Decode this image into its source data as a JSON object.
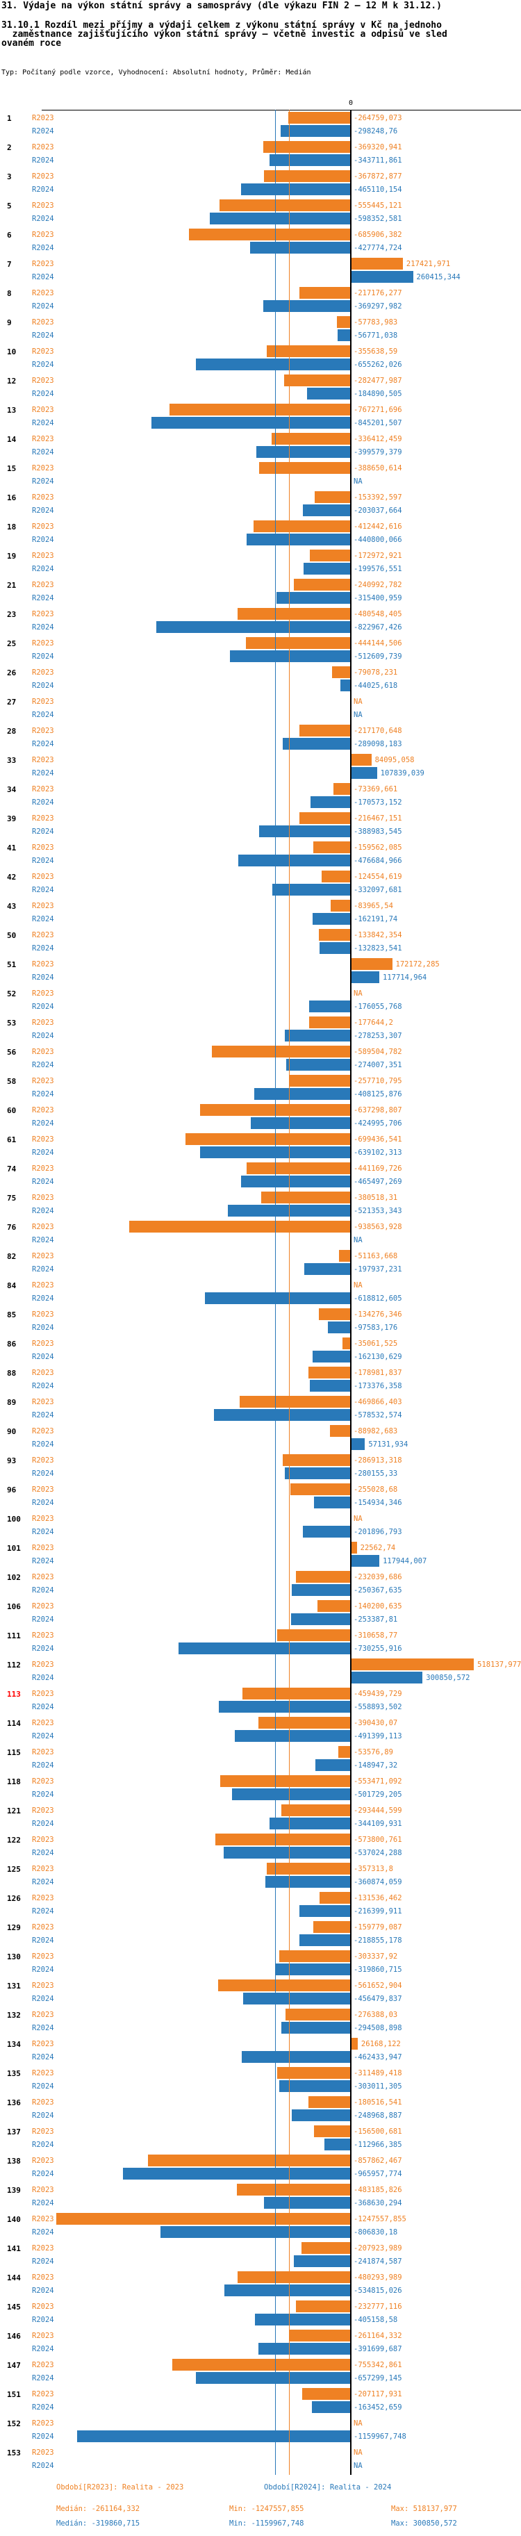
{
  "header": {
    "title": "31. Výdaje na výkon státní správy a samosprávy (dle výkazu FIN 2 – 12 M k 31.12.)",
    "subtitle_line1": "31.10.1 Rozdíl mezi příjmy a výdaji celkem z výkonu státní správy v Kč na jednoho",
    "subtitle_line2": "  zaměstnance zajišťujícího výkon státní správy – včetně investic a odpisů ve sled",
    "subtitle_line3": "ovaném roce",
    "meta": "Typ: Počítaný podle vzorce, Vyhodnocení: Absolutní hodnoty, Průměr: Medián"
  },
  "chart_data": {
    "type": "bar",
    "orientation": "horizontal",
    "zero_tick_label": "0",
    "na_label": "NA",
    "series_labels": [
      "R2023",
      "R2024"
    ],
    "legend": {
      "r2023": "Období[R2023]: Realita - 2023",
      "r2024": "Období[R2024]: Realita - 2024"
    },
    "colors": {
      "r2023": "#ef8123",
      "r2024": "#2979b9",
      "axis": "#000000",
      "highlight_id": "#ff0000"
    },
    "xlim": [
      -1300000,
      600000
    ],
    "median_lines": {
      "r2023": -261164.332,
      "r2024": -319860.715
    },
    "stats": {
      "r2023": {
        "median": "-261164,332",
        "min": "-1247557,855",
        "max": "518137,977"
      },
      "r2024": {
        "median": "-319860,715",
        "min": "-1159967,748",
        "max": "300850,572"
      }
    },
    "rows": [
      {
        "id": "1",
        "r2023": "-264759,073",
        "r2024": "-298248,76"
      },
      {
        "id": "2",
        "r2023": "-369320,941",
        "r2024": "-343711,861"
      },
      {
        "id": "3",
        "r2023": "-367872,877",
        "r2024": "-465110,154"
      },
      {
        "id": "5",
        "r2023": "-555445,121",
        "r2024": "-598352,581"
      },
      {
        "id": "6",
        "r2023": "-685906,382",
        "r2024": "-427774,724"
      },
      {
        "id": "7",
        "r2023": "217421,971",
        "r2024": "260415,344"
      },
      {
        "id": "8",
        "r2023": "-217176,277",
        "r2024": "-369297,982"
      },
      {
        "id": "9",
        "r2023": "-57783,983",
        "r2024": "-56771,038"
      },
      {
        "id": "10",
        "r2023": "-355638,59",
        "r2024": "-655262,026"
      },
      {
        "id": "12",
        "r2023": "-282477,987",
        "r2024": "-184890,505"
      },
      {
        "id": "13",
        "r2023": "-767271,696",
        "r2024": "-845201,507"
      },
      {
        "id": "14",
        "r2023": "-336412,459",
        "r2024": "-399579,379"
      },
      {
        "id": "15",
        "r2023": "-388650,614",
        "r2024": "NA"
      },
      {
        "id": "16",
        "r2023": "-153392,597",
        "r2024": "-203037,664"
      },
      {
        "id": "18",
        "r2023": "-412442,616",
        "r2024": "-440800,066"
      },
      {
        "id": "19",
        "r2023": "-172972,921",
        "r2024": "-199576,551"
      },
      {
        "id": "21",
        "r2023": "-240992,782",
        "r2024": "-315400,959"
      },
      {
        "id": "23",
        "r2023": "-480548,405",
        "r2024": "-822967,426"
      },
      {
        "id": "25",
        "r2023": "-444144,506",
        "r2024": "-512609,739"
      },
      {
        "id": "26",
        "r2023": "-79078,231",
        "r2024": "-44025,618"
      },
      {
        "id": "27",
        "r2023": "NA",
        "r2024": "NA"
      },
      {
        "id": "28",
        "r2023": "-217170,648",
        "r2024": "-289098,183"
      },
      {
        "id": "33",
        "r2023": "84095,058",
        "r2024": "107839,039"
      },
      {
        "id": "34",
        "r2023": "-73369,661",
        "r2024": "-170573,152"
      },
      {
        "id": "39",
        "r2023": "-216467,151",
        "r2024": "-388983,545"
      },
      {
        "id": "41",
        "r2023": "-159562,085",
        "r2024": "-476684,966"
      },
      {
        "id": "42",
        "r2023": "-124554,619",
        "r2024": "-332097,681"
      },
      {
        "id": "43",
        "r2023": "-83965,54",
        "r2024": "-162191,74"
      },
      {
        "id": "50",
        "r2023": "-133842,354",
        "r2024": "-132823,541"
      },
      {
        "id": "51",
        "r2023": "172172,285",
        "r2024": "117714,964"
      },
      {
        "id": "52",
        "r2023": "NA",
        "r2024": "-176055,768"
      },
      {
        "id": "53",
        "r2023": "-177644,2",
        "r2024": "-278253,307"
      },
      {
        "id": "56",
        "r2023": "-589504,782",
        "r2024": "-274007,351"
      },
      {
        "id": "58",
        "r2023": "-257710,795",
        "r2024": "-408125,876"
      },
      {
        "id": "60",
        "r2023": "-637298,807",
        "r2024": "-424995,706"
      },
      {
        "id": "61",
        "r2023": "-699436,541",
        "r2024": "-639102,313"
      },
      {
        "id": "74",
        "r2023": "-441169,726",
        "r2024": "-465497,269"
      },
      {
        "id": "75",
        "r2023": "-380518,31",
        "r2024": "-521353,343"
      },
      {
        "id": "76",
        "r2023": "-938563,928",
        "r2024": "NA"
      },
      {
        "id": "82",
        "r2023": "-51163,668",
        "r2024": "-197937,231"
      },
      {
        "id": "84",
        "r2023": "NA",
        "r2024": "-618812,605"
      },
      {
        "id": "85",
        "r2023": "-134276,346",
        "r2024": "-97583,176"
      },
      {
        "id": "86",
        "r2023": "-35061,525",
        "r2024": "-162130,629"
      },
      {
        "id": "88",
        "r2023": "-178981,837",
        "r2024": "-173376,358"
      },
      {
        "id": "89",
        "r2023": "-469866,403",
        "r2024": "-578532,574"
      },
      {
        "id": "90",
        "r2023": "-88982,683",
        "r2024": "57131,934"
      },
      {
        "id": "93",
        "r2023": "-286913,318",
        "r2024": "-280155,33"
      },
      {
        "id": "96",
        "r2023": "-255028,68",
        "r2024": "-154934,346"
      },
      {
        "id": "100",
        "r2023": "NA",
        "r2024": "-201896,793"
      },
      {
        "id": "101",
        "r2023": "22562,74",
        "r2024": "117944,007"
      },
      {
        "id": "102",
        "r2023": "-232039,686",
        "r2024": "-250367,635"
      },
      {
        "id": "106",
        "r2023": "-140200,635",
        "r2024": "-253387,81"
      },
      {
        "id": "111",
        "r2023": "-310658,77",
        "r2024": "-730255,916"
      },
      {
        "id": "112",
        "r2023": "518137,977",
        "r2024": "300850,572"
      },
      {
        "id": "113",
        "highlight": true,
        "r2023": "-459439,729",
        "r2024": "-558893,502"
      },
      {
        "id": "114",
        "r2023": "-390430,07",
        "r2024": "-491399,113"
      },
      {
        "id": "115",
        "r2023": "-53576,89",
        "r2024": "-148947,32"
      },
      {
        "id": "118",
        "r2023": "-553471,092",
        "r2024": "-501729,205"
      },
      {
        "id": "121",
        "r2023": "-293444,599",
        "r2024": "-344109,931"
      },
      {
        "id": "122",
        "r2023": "-573800,761",
        "r2024": "-537024,288"
      },
      {
        "id": "125",
        "r2023": "-357313,8",
        "r2024": "-360874,059"
      },
      {
        "id": "126",
        "r2023": "-131536,462",
        "r2024": "-216399,911"
      },
      {
        "id": "129",
        "r2023": "-159779,087",
        "r2024": "-218855,178"
      },
      {
        "id": "130",
        "r2023": "-303337,92",
        "r2024": "-319860,715"
      },
      {
        "id": "131",
        "r2023": "-561652,904",
        "r2024": "-456479,837"
      },
      {
        "id": "132",
        "r2023": "-276388,03",
        "r2024": "-294508,898"
      },
      {
        "id": "134",
        "r2023": "26168,122",
        "r2024": "-462433,947"
      },
      {
        "id": "135",
        "r2023": "-311489,418",
        "r2024": "-303011,305"
      },
      {
        "id": "136",
        "r2023": "-180516,541",
        "r2024": "-248968,887"
      },
      {
        "id": "137",
        "r2023": "-156500,681",
        "r2024": "-112966,385"
      },
      {
        "id": "138",
        "r2023": "-857862,467",
        "r2024": "-965957,774"
      },
      {
        "id": "139",
        "r2023": "-483185,826",
        "r2024": "-368630,294"
      },
      {
        "id": "140",
        "r2023": "-1247557,855",
        "r2024": "-806830,18"
      },
      {
        "id": "141",
        "r2023": "-207923,989",
        "r2024": "-241874,587"
      },
      {
        "id": "144",
        "r2023": "-480293,989",
        "r2024": "-534815,026"
      },
      {
        "id": "145",
        "r2023": "-232777,116",
        "r2024": "-405158,58"
      },
      {
        "id": "146",
        "r2023": "-261164,332",
        "r2024": "-391699,687"
      },
      {
        "id": "147",
        "r2023": "-755342,861",
        "r2024": "-657299,145"
      },
      {
        "id": "151",
        "r2023": "-207117,931",
        "r2024": "-163452,659"
      },
      {
        "id": "152",
        "r2023": "NA",
        "r2024": "-1159967,748"
      },
      {
        "id": "153",
        "r2023": "NA",
        "r2024": "NA"
      }
    ]
  },
  "footer": {
    "period_r2023": "Období[R2023]: Realita - 2023",
    "period_r2024": "Období[R2024]: Realita - 2024",
    "median_r2023": "Medián: -261164,332",
    "min_r2023": "Min: -1247557,855",
    "max_r2023": "Max: 518137,977",
    "median_r2024": "Medián: -319860,715",
    "min_r2024": "Min: -1159967,748",
    "max_r2024": "Max: 300850,572"
  }
}
